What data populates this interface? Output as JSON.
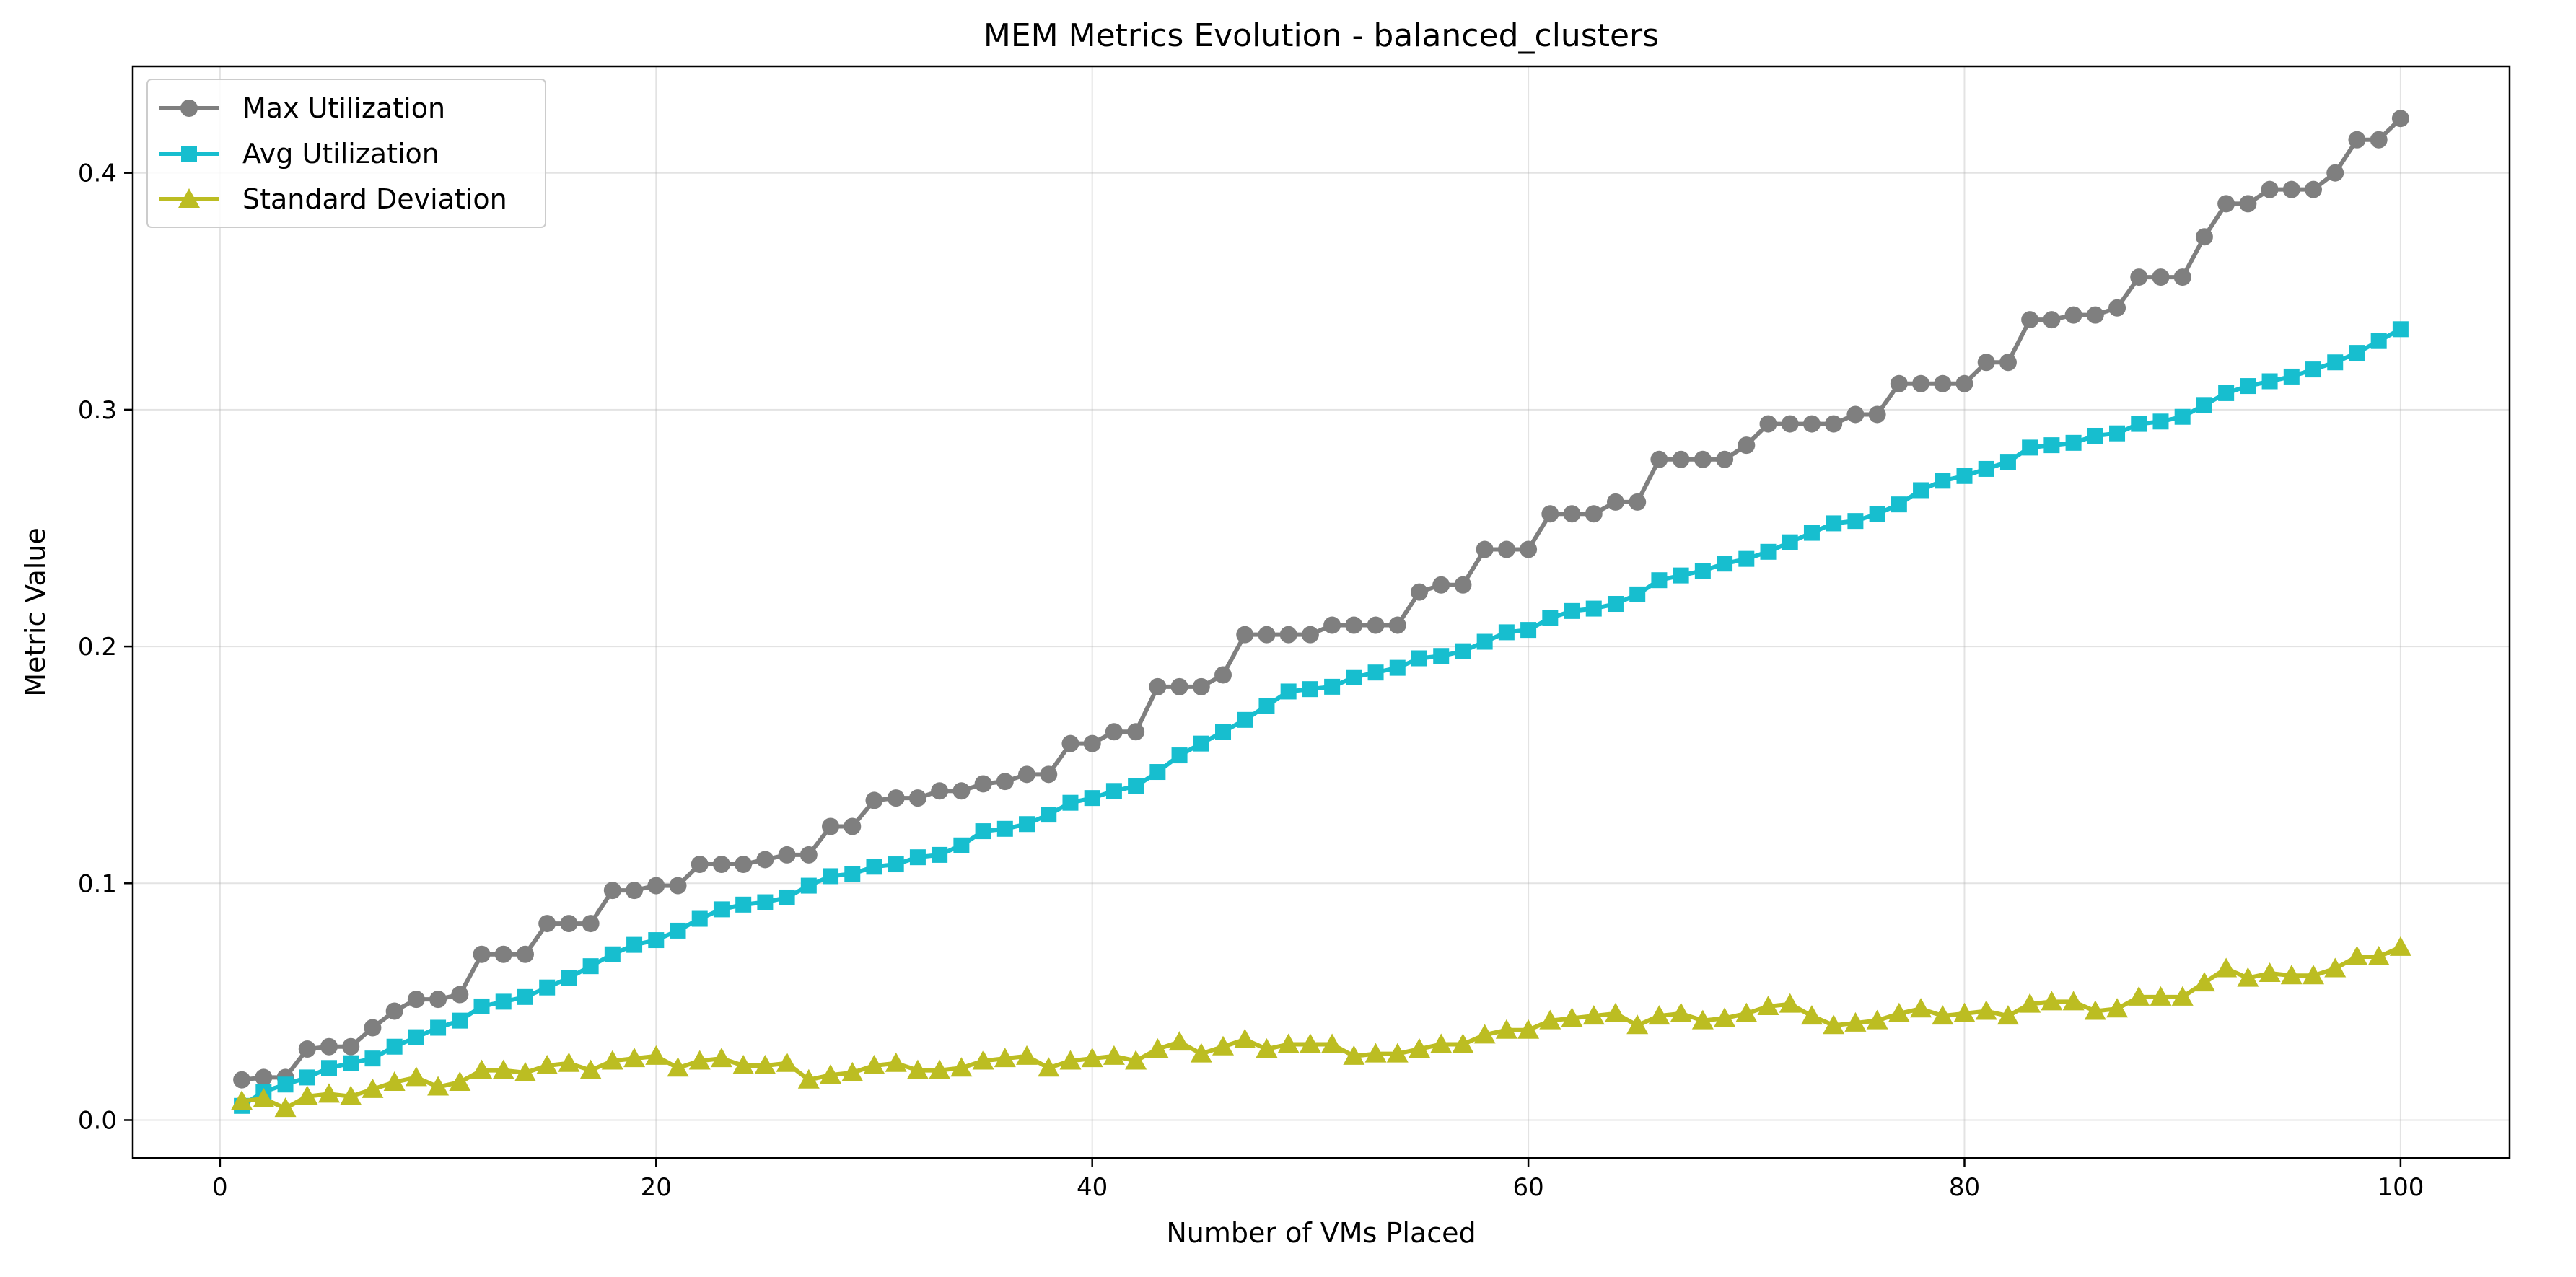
{
  "chart_data": {
    "type": "line",
    "title": "MEM Metrics Evolution - balanced_clusters",
    "xlabel": "Number of VMs Placed",
    "ylabel": "Metric Value",
    "xlim": [
      -4,
      105
    ],
    "ylim": [
      -0.016,
      0.445
    ],
    "xticks": [
      0,
      20,
      40,
      60,
      80,
      100
    ],
    "xtick_labels": [
      "0",
      "20",
      "40",
      "60",
      "80",
      "100"
    ],
    "yticks": [
      0.0,
      0.1,
      0.2,
      0.3,
      0.4
    ],
    "ytick_labels": [
      "0.0",
      "0.1",
      "0.2",
      "0.3",
      "0.4"
    ],
    "grid": true,
    "legend_position": "top-left",
    "x": [
      1,
      2,
      3,
      4,
      5,
      6,
      7,
      8,
      9,
      10,
      11,
      12,
      13,
      14,
      15,
      16,
      17,
      18,
      19,
      20,
      21,
      22,
      23,
      24,
      25,
      26,
      27,
      28,
      29,
      30,
      31,
      32,
      33,
      34,
      35,
      36,
      37,
      38,
      39,
      40,
      41,
      42,
      43,
      44,
      45,
      46,
      47,
      48,
      49,
      50,
      51,
      52,
      53,
      54,
      55,
      56,
      57,
      58,
      59,
      60,
      61,
      62,
      63,
      64,
      65,
      66,
      67,
      68,
      69,
      70,
      71,
      72,
      73,
      74,
      75,
      76,
      77,
      78,
      79,
      80,
      81,
      82,
      83,
      84,
      85,
      86,
      87,
      88,
      89,
      90,
      91,
      92,
      93,
      94,
      95,
      96,
      97,
      98,
      99,
      100
    ],
    "series": [
      {
        "name": "Max Utilization",
        "color": "#7f7f7f",
        "marker": "circle",
        "values": [
          0.017,
          0.018,
          0.018,
          0.03,
          0.031,
          0.031,
          0.039,
          0.046,
          0.051,
          0.051,
          0.053,
          0.07,
          0.07,
          0.07,
          0.083,
          0.083,
          0.083,
          0.097,
          0.097,
          0.099,
          0.099,
          0.108,
          0.108,
          0.108,
          0.11,
          0.112,
          0.112,
          0.124,
          0.124,
          0.135,
          0.136,
          0.136,
          0.139,
          0.139,
          0.142,
          0.143,
          0.146,
          0.146,
          0.159,
          0.159,
          0.164,
          0.164,
          0.183,
          0.183,
          0.183,
          0.188,
          0.205,
          0.205,
          0.205,
          0.205,
          0.209,
          0.209,
          0.209,
          0.209,
          0.223,
          0.226,
          0.226,
          0.241,
          0.241,
          0.241,
          0.256,
          0.256,
          0.256,
          0.261,
          0.261,
          0.279,
          0.279,
          0.279,
          0.279,
          0.285,
          0.294,
          0.294,
          0.294,
          0.294,
          0.298,
          0.298,
          0.311,
          0.311,
          0.311,
          0.311,
          0.32,
          0.32,
          0.338,
          0.338,
          0.34,
          0.34,
          0.343,
          0.356,
          0.356,
          0.356,
          0.373,
          0.387,
          0.387,
          0.393,
          0.393,
          0.393,
          0.4,
          0.414,
          0.414,
          0.423
        ]
      },
      {
        "name": "Avg Utilization",
        "color": "#17becf",
        "marker": "square",
        "values": [
          0.006,
          0.012,
          0.015,
          0.018,
          0.022,
          0.024,
          0.026,
          0.031,
          0.035,
          0.039,
          0.042,
          0.048,
          0.05,
          0.052,
          0.056,
          0.06,
          0.065,
          0.07,
          0.074,
          0.076,
          0.08,
          0.085,
          0.089,
          0.091,
          0.092,
          0.094,
          0.099,
          0.103,
          0.104,
          0.107,
          0.108,
          0.111,
          0.112,
          0.116,
          0.122,
          0.123,
          0.125,
          0.129,
          0.134,
          0.136,
          0.139,
          0.141,
          0.147,
          0.154,
          0.159,
          0.164,
          0.169,
          0.175,
          0.181,
          0.182,
          0.183,
          0.187,
          0.189,
          0.191,
          0.195,
          0.196,
          0.198,
          0.202,
          0.206,
          0.207,
          0.212,
          0.215,
          0.216,
          0.218,
          0.222,
          0.228,
          0.23,
          0.232,
          0.235,
          0.237,
          0.24,
          0.244,
          0.248,
          0.252,
          0.253,
          0.256,
          0.26,
          0.266,
          0.27,
          0.272,
          0.275,
          0.278,
          0.284,
          0.285,
          0.286,
          0.289,
          0.29,
          0.294,
          0.295,
          0.297,
          0.302,
          0.307,
          0.31,
          0.312,
          0.314,
          0.317,
          0.32,
          0.324,
          0.329,
          0.334
        ]
      },
      {
        "name": "Standard Deviation",
        "color": "#bcbd22",
        "marker": "triangle",
        "values": [
          0.008,
          0.009,
          0.005,
          0.01,
          0.011,
          0.01,
          0.013,
          0.016,
          0.018,
          0.014,
          0.016,
          0.021,
          0.021,
          0.02,
          0.023,
          0.024,
          0.021,
          0.025,
          0.026,
          0.027,
          0.022,
          0.025,
          0.026,
          0.023,
          0.023,
          0.024,
          0.017,
          0.019,
          0.02,
          0.023,
          0.024,
          0.021,
          0.021,
          0.022,
          0.025,
          0.026,
          0.027,
          0.022,
          0.025,
          0.026,
          0.027,
          0.025,
          0.03,
          0.033,
          0.028,
          0.031,
          0.034,
          0.03,
          0.032,
          0.032,
          0.032,
          0.027,
          0.028,
          0.028,
          0.03,
          0.032,
          0.032,
          0.036,
          0.038,
          0.038,
          0.042,
          0.043,
          0.044,
          0.045,
          0.04,
          0.044,
          0.045,
          0.042,
          0.043,
          0.045,
          0.048,
          0.049,
          0.044,
          0.04,
          0.041,
          0.042,
          0.045,
          0.047,
          0.044,
          0.045,
          0.046,
          0.044,
          0.049,
          0.05,
          0.05,
          0.046,
          0.047,
          0.052,
          0.052,
          0.052,
          0.058,
          0.064,
          0.06,
          0.062,
          0.061,
          0.061,
          0.064,
          0.069,
          0.069,
          0.073
        ]
      }
    ]
  }
}
